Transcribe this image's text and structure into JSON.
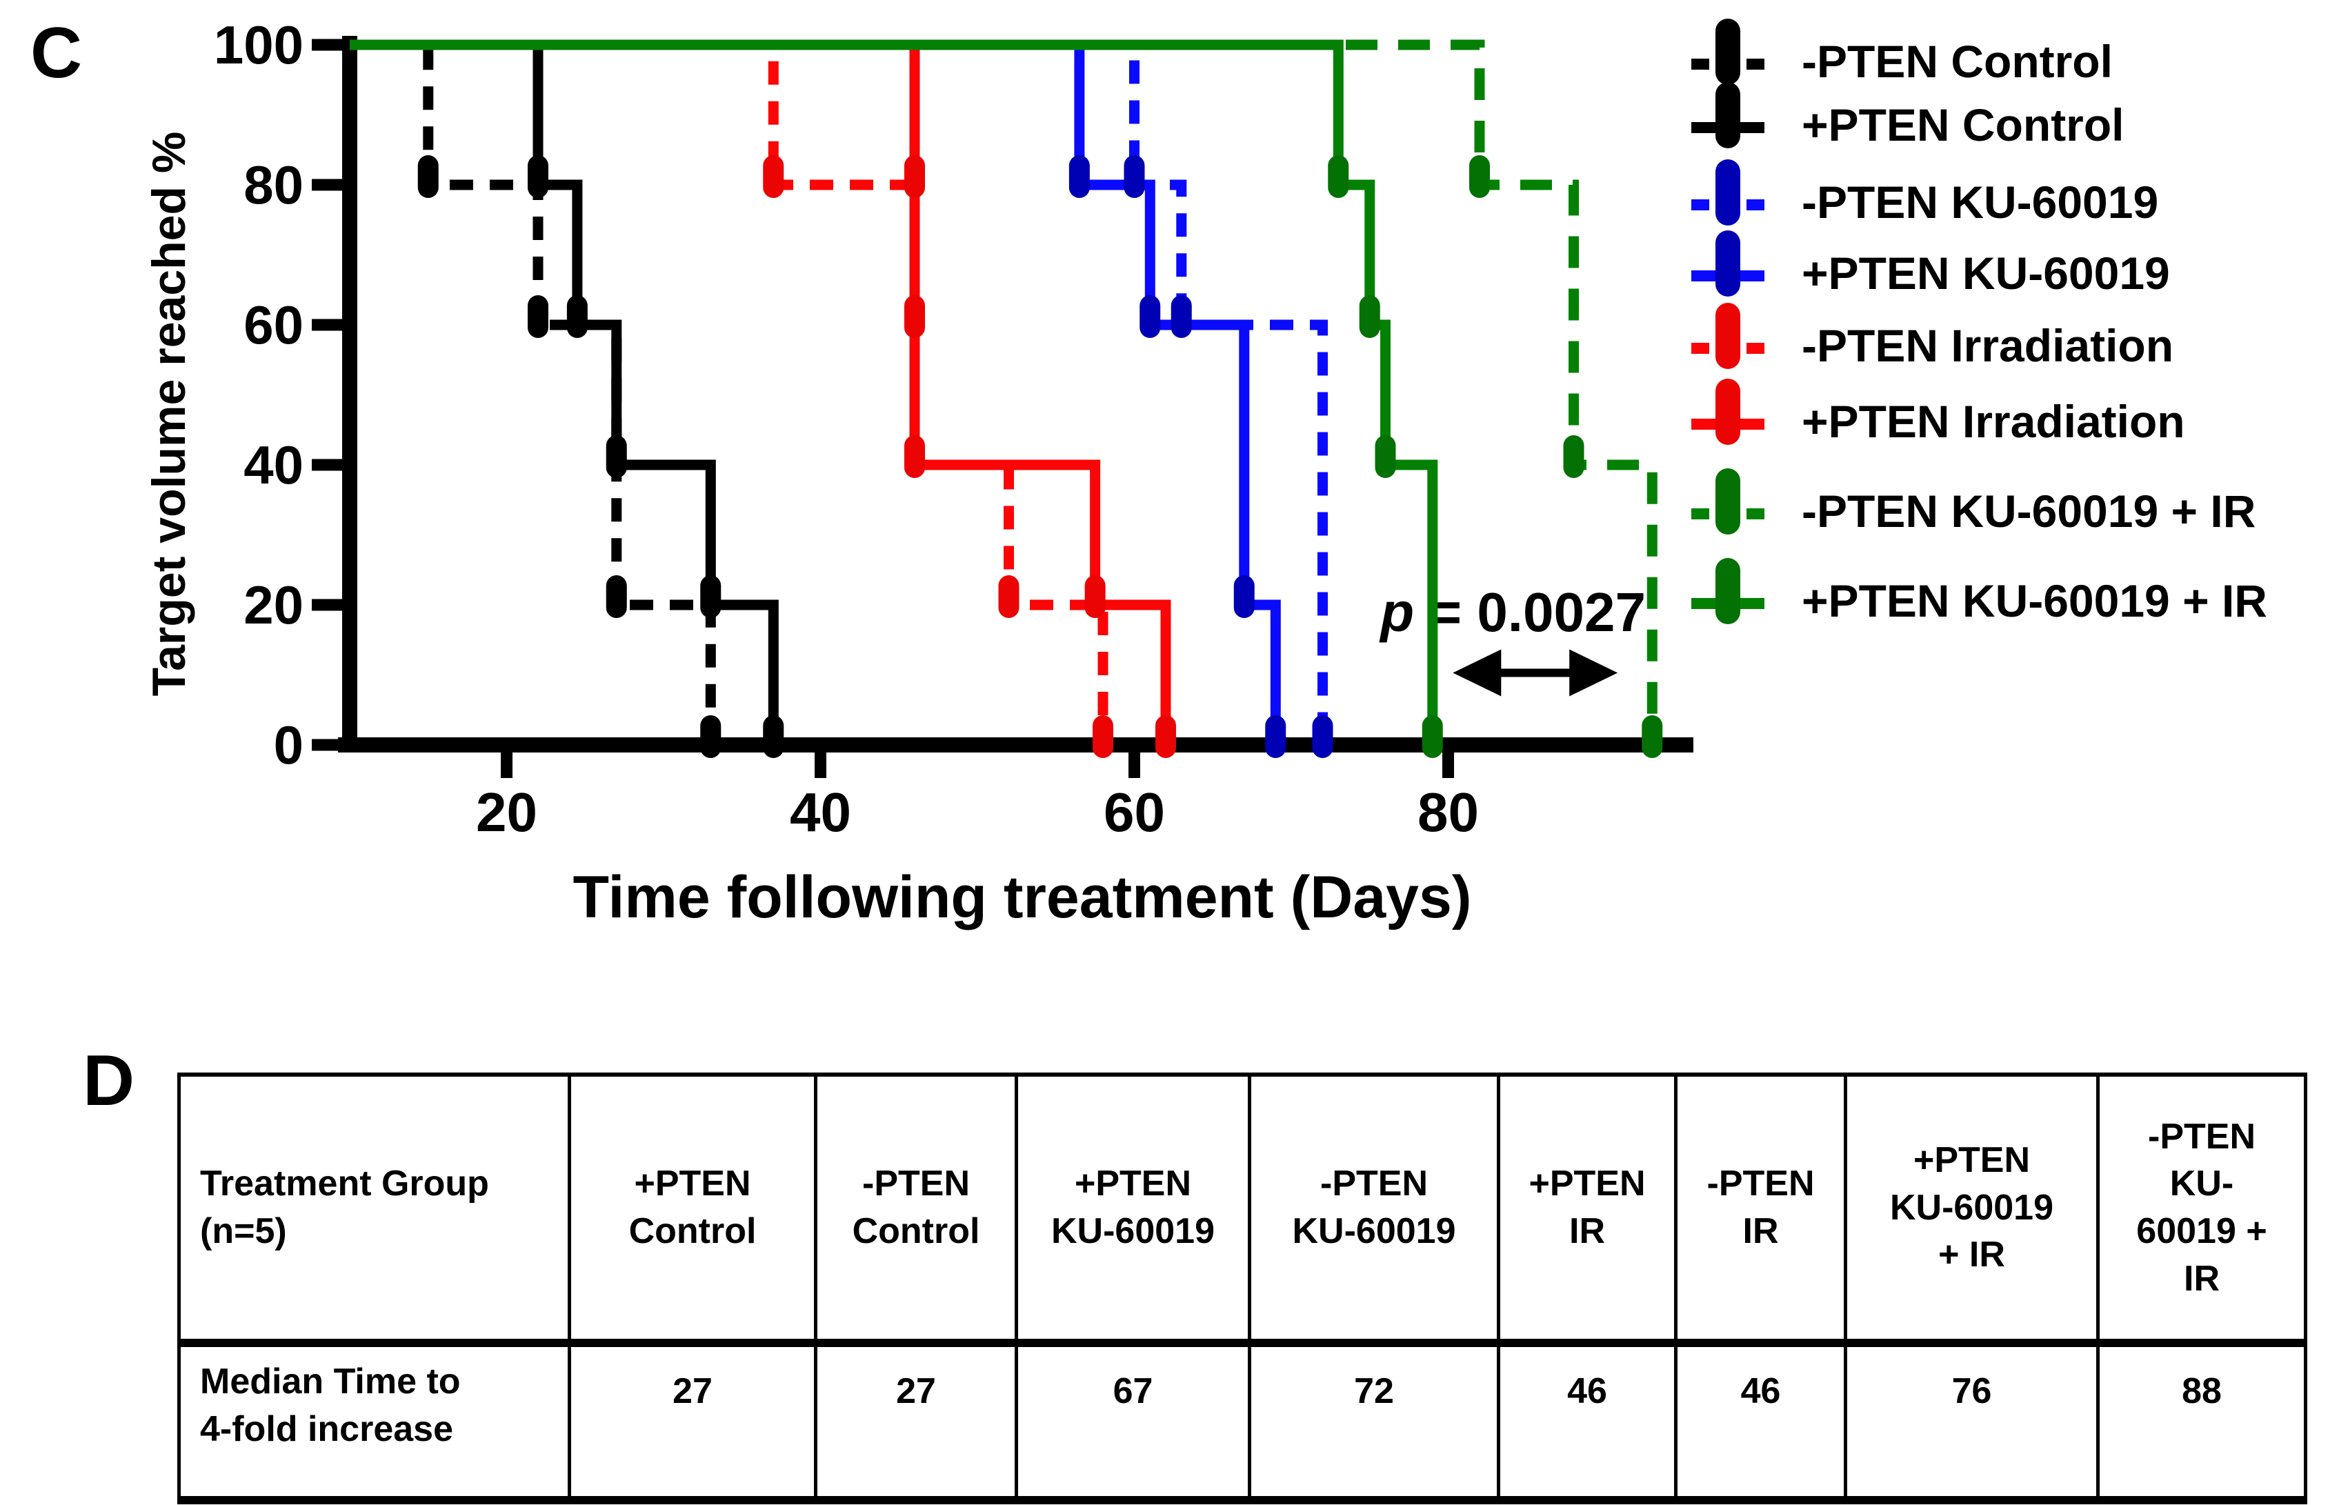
{
  "panel_c_label": "C",
  "panel_d_label": "D",
  "chart_data": {
    "type": "line",
    "subtype": "kaplan-meier-step",
    "title": "",
    "xlabel": "Time following treatment (Days)",
    "ylabel": "Target volume reached %",
    "x_ticks": [
      20,
      40,
      60,
      80
    ],
    "y_ticks": [
      100,
      80,
      60,
      40,
      20,
      0
    ],
    "x_axis_domain_days": [
      10,
      95.6
    ],
    "ylim": [
      0,
      100
    ],
    "grid": false,
    "legend_position": "right",
    "series": [
      {
        "name": "-PTEN Control",
        "color": "#000000",
        "marker_color": "#000000",
        "dashed": true,
        "dash_pattern": "34 24",
        "median_days": 27,
        "steps": [
          [
            15,
            80
          ],
          [
            22,
            60
          ],
          [
            27,
            20
          ],
          [
            33,
            0
          ]
        ],
        "markers": [
          [
            15,
            80
          ],
          [
            22,
            60
          ],
          [
            27,
            20
          ],
          [
            33,
            0
          ]
        ]
      },
      {
        "name": "+PTEN Control",
        "color": "#000000",
        "marker_color": "#000000",
        "dashed": false,
        "dash_pattern": null,
        "median_days": 27,
        "steps": [
          [
            22,
            80
          ],
          [
            24.5,
            60
          ],
          [
            27,
            40
          ],
          [
            33,
            20
          ],
          [
            37,
            0
          ]
        ],
        "markers": [
          [
            22,
            80
          ],
          [
            24.5,
            60
          ],
          [
            27,
            40
          ],
          [
            33,
            20
          ],
          [
            37,
            0
          ]
        ]
      },
      {
        "name": "-PTEN KU-60019",
        "color": "#0a0afe",
        "marker_color": "#0000b4",
        "dashed": true,
        "dash_pattern": "34 24",
        "median_days": 72,
        "steps": [
          [
            60,
            80
          ],
          [
            63,
            60
          ],
          [
            72,
            0
          ]
        ],
        "markers": [
          [
            60,
            80
          ],
          [
            63,
            60
          ],
          [
            72,
            0
          ]
        ]
      },
      {
        "name": "+PTEN KU-60019",
        "color": "#0a0afe",
        "marker_color": "#0000b4",
        "dashed": false,
        "dash_pattern": null,
        "median_days": 67,
        "steps": [
          [
            56.5,
            80
          ],
          [
            61,
            60
          ],
          [
            67,
            20
          ],
          [
            69,
            0
          ]
        ],
        "markers": [
          [
            56.5,
            80
          ],
          [
            61,
            60
          ],
          [
            67,
            20
          ],
          [
            69,
            0
          ]
        ]
      },
      {
        "name": "-PTEN Irradiation",
        "color": "#fb0506",
        "marker_color": "#ea0404",
        "dashed": true,
        "dash_pattern": "34 24",
        "median_days": 46,
        "steps": [
          [
            37,
            80
          ],
          [
            46,
            40
          ],
          [
            52,
            20
          ],
          [
            58,
            0
          ]
        ],
        "markers": [
          [
            37,
            80
          ],
          [
            46,
            60
          ],
          [
            52,
            20
          ],
          [
            58,
            0
          ]
        ]
      },
      {
        "name": "+PTEN Irradiation",
        "color": "#fb0506",
        "marker_color": "#ea0404",
        "dashed": false,
        "dash_pattern": null,
        "median_days": 46,
        "steps": [
          [
            46,
            40
          ],
          [
            57.5,
            20
          ],
          [
            62,
            0
          ]
        ],
        "markers": [
          [
            46,
            80
          ],
          [
            46,
            40
          ],
          [
            57.5,
            20
          ],
          [
            62,
            0
          ]
        ]
      },
      {
        "name": "-PTEN KU-60019 + IR",
        "color": "#048104",
        "marker_color": "#047104",
        "dashed": true,
        "dash_pattern": "46 30",
        "median_days": 88,
        "steps": [
          [
            82,
            80
          ],
          [
            88,
            40
          ],
          [
            93,
            0
          ]
        ],
        "markers": [
          [
            82,
            80
          ],
          [
            88,
            40
          ],
          [
            93,
            0
          ]
        ]
      },
      {
        "name": "+PTEN KU-60019 + IR",
        "color": "#048104",
        "marker_color": "#047104",
        "dashed": false,
        "dash_pattern": null,
        "median_days": 76,
        "steps": [
          [
            73,
            80
          ],
          [
            75,
            60
          ],
          [
            76,
            40
          ],
          [
            79,
            0
          ]
        ],
        "markers": [
          [
            73,
            80
          ],
          [
            75,
            60
          ],
          [
            76,
            40
          ],
          [
            79,
            0
          ]
        ]
      }
    ],
    "annotation": {
      "p_symbol": "p",
      "p_rest": " = 0.0027",
      "text_end_day": 92.6,
      "text_y_pct": 16.3,
      "arrow_x1_day": 80.3,
      "arrow_x2_day": 90.8,
      "arrow_y_pct": 10.3
    }
  },
  "legend": {
    "marker_style": "line-with-vertical-capsule-tick"
  },
  "table": {
    "headers": [
      [
        "Treatment Group",
        "(n=5)"
      ],
      [
        "+PTEN",
        "Control"
      ],
      [
        "-PTEN",
        "Control"
      ],
      [
        "+PTEN",
        "KU-60019"
      ],
      [
        "-PTEN",
        "KU-60019"
      ],
      [
        "+PTEN",
        "IR"
      ],
      [
        "-PTEN",
        "IR"
      ],
      [
        "+PTEN",
        "KU-60019",
        "+ IR"
      ],
      [
        "-PTEN",
        "KU-",
        "60019 +",
        "IR"
      ]
    ],
    "row_label": [
      "Median Time to",
      "4-fold increase"
    ],
    "values": [
      "27",
      "27",
      "67",
      "72",
      "46",
      "46",
      "76",
      "88"
    ]
  }
}
